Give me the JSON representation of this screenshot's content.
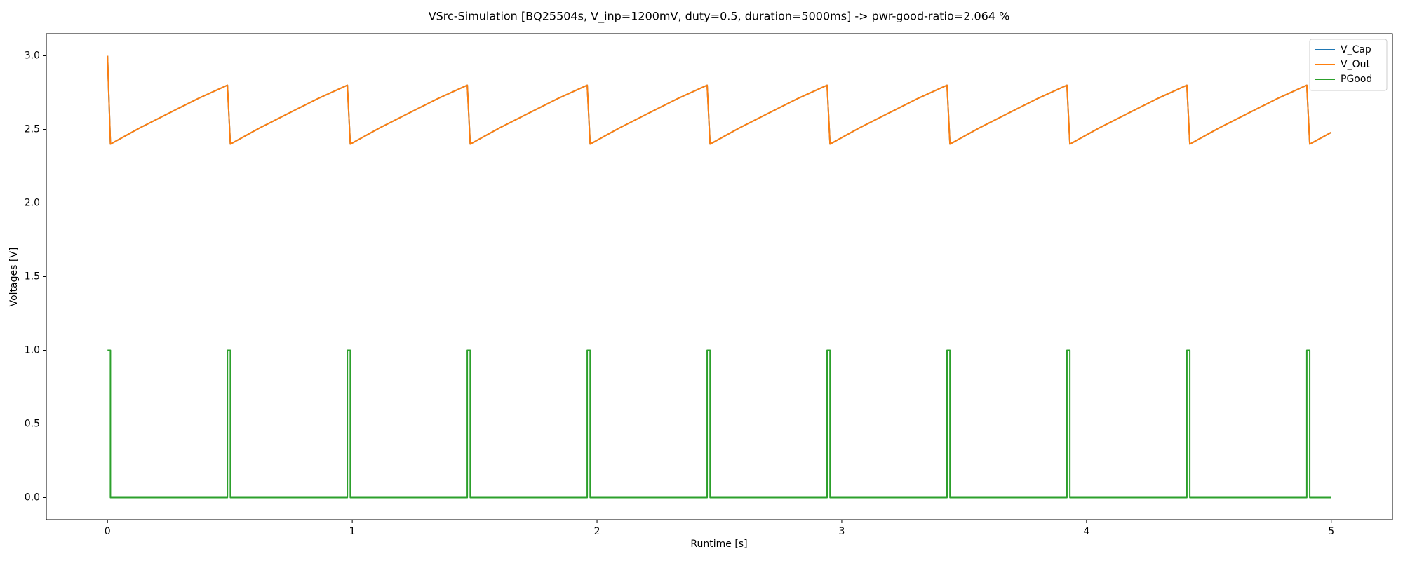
{
  "chart_data": {
    "type": "line",
    "title": "VSrc-Simulation [BQ25504s, V_inp=1200mV, duty=0.5, duration=5000ms] -> pwr-good-ratio=2.064 %",
    "xlabel": "Runtime [s]",
    "ylabel": "Voltages [V]",
    "xlim": [
      -0.25,
      5.25
    ],
    "ylim": [
      -0.15,
      3.15
    ],
    "xticks": [
      0,
      1,
      2,
      3,
      4,
      5
    ],
    "yticks": [
      {
        "value": 0,
        "label": "0.0"
      },
      {
        "value": 0.5,
        "label": "0.5"
      },
      {
        "value": 1,
        "label": "1.0"
      },
      {
        "value": 1.5,
        "label": "1.5"
      },
      {
        "value": 2,
        "label": "2.0"
      },
      {
        "value": 2.5,
        "label": "2.5"
      },
      {
        "value": 3,
        "label": "3.0"
      }
    ],
    "grid": false,
    "legend": "upper right",
    "series": [
      {
        "name": "V_Cap",
        "color": "#1f77b4",
        "x": [
          0,
          0.012,
          0.132,
          0.251,
          0.371,
          0.49,
          0.502,
          0.622,
          0.741,
          0.861,
          0.98,
          0.992,
          1.112,
          1.231,
          1.351,
          1.47,
          1.482,
          1.602,
          1.721,
          1.841,
          1.96,
          1.972,
          2.092,
          2.211,
          2.331,
          2.45,
          2.462,
          2.582,
          2.701,
          2.821,
          2.94,
          2.952,
          3.072,
          3.191,
          3.311,
          3.43,
          3.442,
          3.562,
          3.681,
          3.801,
          3.92,
          3.932,
          4.052,
          4.171,
          4.291,
          4.41,
          4.422,
          4.542,
          4.661,
          4.781,
          4.9,
          4.912,
          5.0
        ],
        "values": [
          3.0,
          2.4,
          2.51,
          2.61,
          2.71,
          2.8,
          2.4,
          2.51,
          2.61,
          2.71,
          2.8,
          2.4,
          2.51,
          2.61,
          2.71,
          2.8,
          2.4,
          2.51,
          2.61,
          2.71,
          2.8,
          2.4,
          2.51,
          2.61,
          2.71,
          2.8,
          2.4,
          2.51,
          2.61,
          2.71,
          2.8,
          2.4,
          2.51,
          2.61,
          2.71,
          2.8,
          2.4,
          2.51,
          2.61,
          2.71,
          2.8,
          2.4,
          2.51,
          2.61,
          2.71,
          2.8,
          2.4,
          2.51,
          2.61,
          2.71,
          2.8,
          2.4,
          2.48
        ]
      },
      {
        "name": "V_Out",
        "color": "#ff7f0e",
        "x": [
          0,
          0.012,
          0.132,
          0.251,
          0.371,
          0.49,
          0.502,
          0.622,
          0.741,
          0.861,
          0.98,
          0.992,
          1.112,
          1.231,
          1.351,
          1.47,
          1.482,
          1.602,
          1.721,
          1.841,
          1.96,
          1.972,
          2.092,
          2.211,
          2.331,
          2.45,
          2.462,
          2.582,
          2.701,
          2.821,
          2.94,
          2.952,
          3.072,
          3.191,
          3.311,
          3.43,
          3.442,
          3.562,
          3.681,
          3.801,
          3.92,
          3.932,
          4.052,
          4.171,
          4.291,
          4.41,
          4.422,
          4.542,
          4.661,
          4.781,
          4.9,
          4.912,
          5.0
        ],
        "values": [
          3.0,
          2.4,
          2.51,
          2.61,
          2.71,
          2.8,
          2.4,
          2.51,
          2.61,
          2.71,
          2.8,
          2.4,
          2.51,
          2.61,
          2.71,
          2.8,
          2.4,
          2.51,
          2.61,
          2.71,
          2.8,
          2.4,
          2.51,
          2.61,
          2.71,
          2.8,
          2.4,
          2.51,
          2.61,
          2.71,
          2.8,
          2.4,
          2.51,
          2.61,
          2.71,
          2.8,
          2.4,
          2.51,
          2.61,
          2.71,
          2.8,
          2.4,
          2.51,
          2.61,
          2.71,
          2.8,
          2.4,
          2.51,
          2.61,
          2.71,
          2.8,
          2.4,
          2.48
        ]
      },
      {
        "name": "PGood",
        "color": "#2ca02c",
        "x": [
          0,
          0.012,
          0.012,
          0.49,
          0.49,
          0.502,
          0.502,
          0.98,
          0.98,
          0.992,
          0.992,
          1.47,
          1.47,
          1.482,
          1.482,
          1.96,
          1.96,
          1.972,
          1.972,
          2.45,
          2.45,
          2.462,
          2.462,
          2.94,
          2.94,
          2.952,
          2.952,
          3.43,
          3.43,
          3.442,
          3.442,
          3.92,
          3.92,
          3.932,
          3.932,
          4.41,
          4.41,
          4.422,
          4.422,
          4.9,
          4.9,
          4.912,
          4.912,
          5.0
        ],
        "values": [
          1,
          1,
          0,
          0,
          1,
          1,
          0,
          0,
          1,
          1,
          0,
          0,
          1,
          1,
          0,
          0,
          1,
          1,
          0,
          0,
          1,
          1,
          0,
          0,
          1,
          1,
          0,
          0,
          1,
          1,
          0,
          0,
          1,
          1,
          0,
          0,
          1,
          1,
          0,
          0,
          1,
          1,
          0,
          0
        ]
      }
    ]
  }
}
